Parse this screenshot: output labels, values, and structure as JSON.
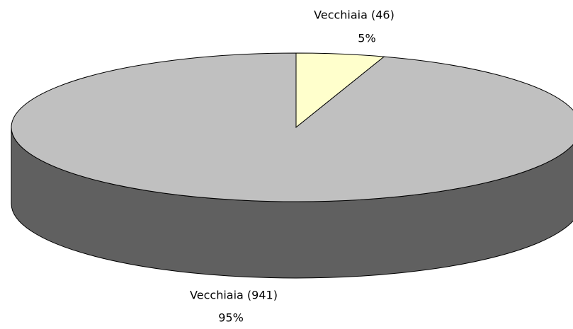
{
  "chart_data": {
    "type": "pie",
    "categories": [
      "Vecchiaia (46)",
      "Vecchiaia (941)"
    ],
    "values": [
      5,
      95
    ],
    "value_labels": [
      "5%",
      "95%"
    ],
    "colors": [
      "#ffffcc",
      "#c0c0c0"
    ],
    "side_color": "#606060"
  }
}
